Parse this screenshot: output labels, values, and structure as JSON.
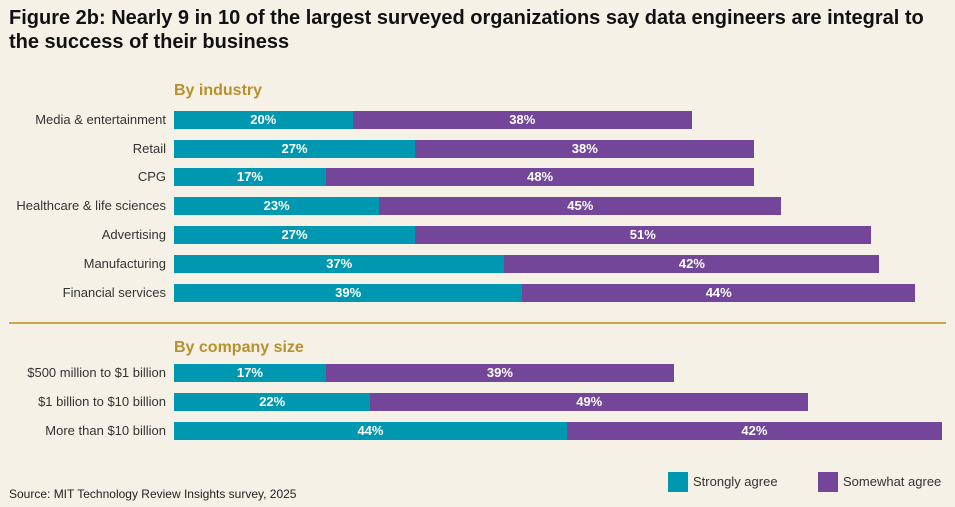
{
  "title": "Figure 2b: Nearly 9 in 10 of the largest surveyed organizations say data engineers are integral to the success of their business",
  "source": "Source: MIT Technology Review Insights survey, 2025",
  "chart_data": {
    "type": "bar",
    "orientation": "horizontal",
    "stacked": true,
    "unit": "%",
    "colors": {
      "Strongly agree": "#0097b0",
      "Somewhat agree": "#74469a"
    },
    "legend": [
      "Strongly agree",
      "Somewhat agree"
    ],
    "legend_position": "bottom-right",
    "groups": [
      {
        "title": "By industry",
        "categories": [
          "Media & entertainment",
          "Retail",
          "CPG",
          "Healthcare & life sciences",
          "Advertising",
          "Manufacturing",
          "Financial services"
        ],
        "series": [
          {
            "name": "Strongly agree",
            "values": [
              20,
              27,
              17,
              23,
              27,
              37,
              39
            ]
          },
          {
            "name": "Somewhat agree",
            "values": [
              38,
              38,
              48,
              45,
              51,
              42,
              44
            ]
          }
        ]
      },
      {
        "title": "By company size",
        "categories": [
          "$500 million to $1 billion",
          "$1 billion to $10 billion",
          "More than $10 billion"
        ],
        "series": [
          {
            "name": "Strongly agree",
            "values": [
              17,
              22,
              44
            ]
          },
          {
            "name": "Somewhat agree",
            "values": [
              39,
              49,
              42
            ]
          }
        ]
      }
    ]
  }
}
